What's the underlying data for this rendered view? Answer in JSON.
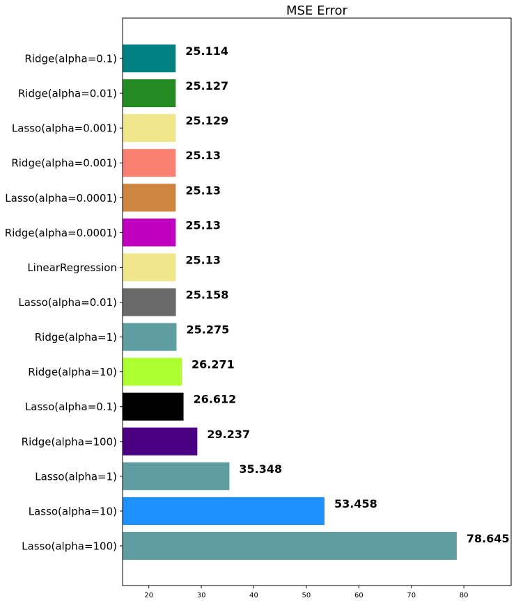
{
  "chart_data": {
    "type": "bar",
    "orientation": "horizontal",
    "title": "MSE Error",
    "xlabel": "",
    "ylabel": "",
    "xlim": [
      15,
      89
    ],
    "xticks": [
      20,
      30,
      40,
      50,
      60,
      70,
      80
    ],
    "xtick_labels": [
      "20",
      "30",
      "40",
      "50",
      "60",
      "70",
      "80"
    ],
    "grid": false,
    "categories": [
      "Ridge(alpha=0.1)",
      "Ridge(alpha=0.01)",
      "Lasso(alpha=0.001)",
      "Ridge(alpha=0.001)",
      "Lasso(alpha=0.0001)",
      "Ridge(alpha=0.0001)",
      "LinearRegression",
      "Lasso(alpha=0.01)",
      "Ridge(alpha=1)",
      "Ridge(alpha=10)",
      "Lasso(alpha=0.1)",
      "Ridge(alpha=100)",
      "Lasso(alpha=1)",
      "Lasso(alpha=10)",
      "Lasso(alpha=100)"
    ],
    "values": [
      25.114,
      25.127,
      25.129,
      25.13,
      25.13,
      25.13,
      25.13,
      25.158,
      25.275,
      26.271,
      26.612,
      29.237,
      35.348,
      53.458,
      78.645
    ],
    "value_labels": [
      "25.114",
      "25.127",
      "25.129",
      "25.13",
      "25.13",
      "25.13",
      "25.13",
      "25.158",
      "25.275",
      "26.271",
      "26.612",
      "29.237",
      "35.348",
      "53.458",
      "78.645"
    ],
    "colors": [
      "#008080",
      "#228b22",
      "#f0e68c",
      "#fa8072",
      "#cd853f",
      "#bf00bf",
      "#f0e68c",
      "#696969",
      "#5f9ea0",
      "#adff2f",
      "#000000",
      "#4b0082",
      "#5f9ea0",
      "#1e90ff",
      "#5f9ea0"
    ]
  }
}
